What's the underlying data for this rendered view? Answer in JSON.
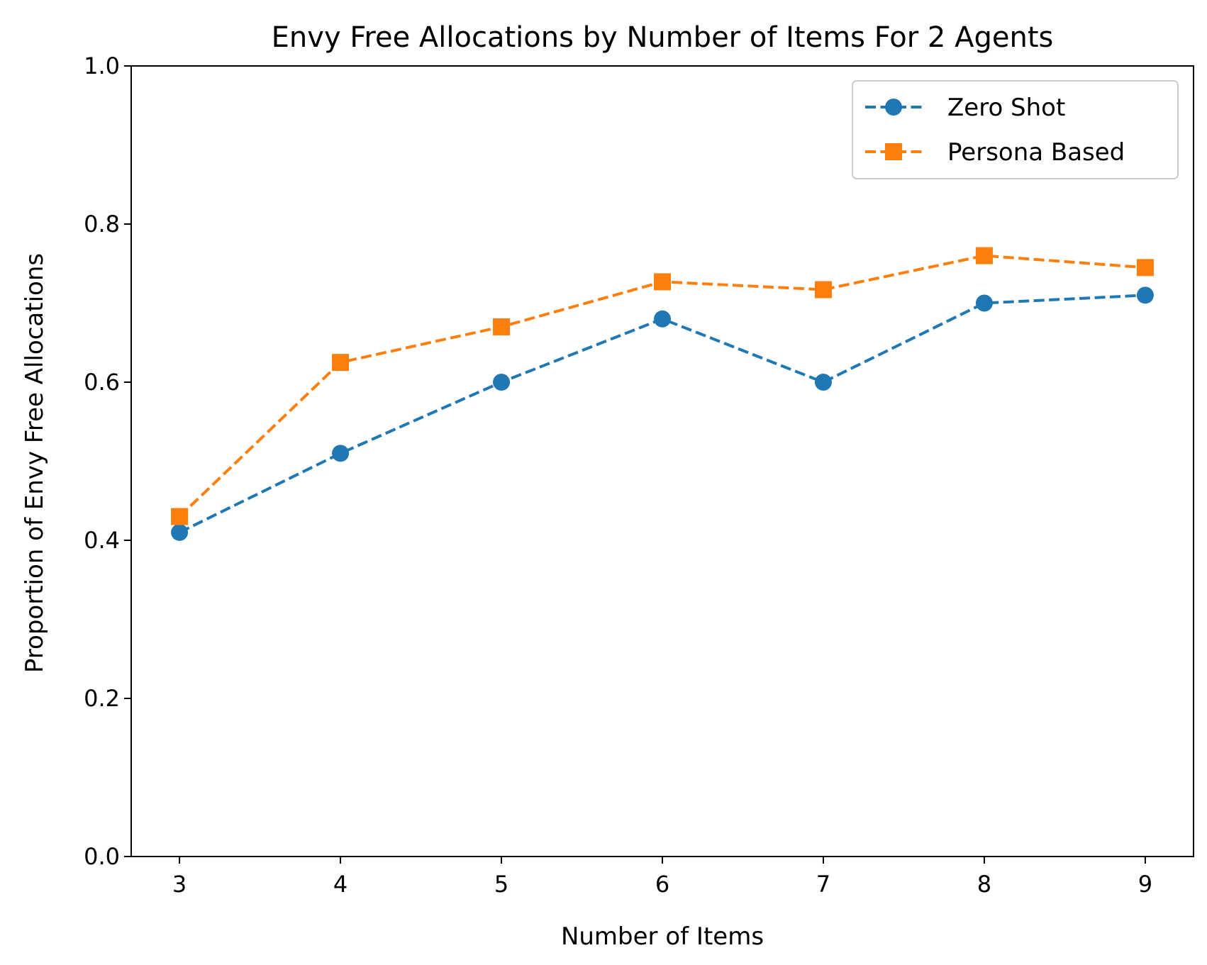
{
  "chart_data": {
    "type": "line",
    "title": "Envy Free Allocations by Number of Items For 2 Agents",
    "xlabel": "Number of Items",
    "ylabel": "Proportion of Envy Free Allocations",
    "x": [
      3,
      4,
      5,
      6,
      7,
      8,
      9
    ],
    "xticks": [
      "3",
      "4",
      "5",
      "6",
      "7",
      "8",
      "9"
    ],
    "xlim": [
      2.7,
      9.3
    ],
    "ylim": [
      0.0,
      1.0
    ],
    "yticks": [
      "0.0",
      "0.2",
      "0.4",
      "0.6",
      "0.8",
      "1.0"
    ],
    "grid": false,
    "legend_position": "top-right",
    "series": [
      {
        "name": "Zero Shot",
        "color": "#1f77b4",
        "marker": "circle",
        "linestyle": "dashed",
        "values": [
          0.41,
          0.51,
          0.6,
          0.68,
          0.6,
          0.7,
          0.71
        ]
      },
      {
        "name": "Persona Based",
        "color": "#ff7f0e",
        "marker": "square",
        "linestyle": "dashed",
        "values": [
          0.43,
          0.625,
          0.67,
          0.727,
          0.717,
          0.76,
          0.745
        ]
      }
    ]
  }
}
